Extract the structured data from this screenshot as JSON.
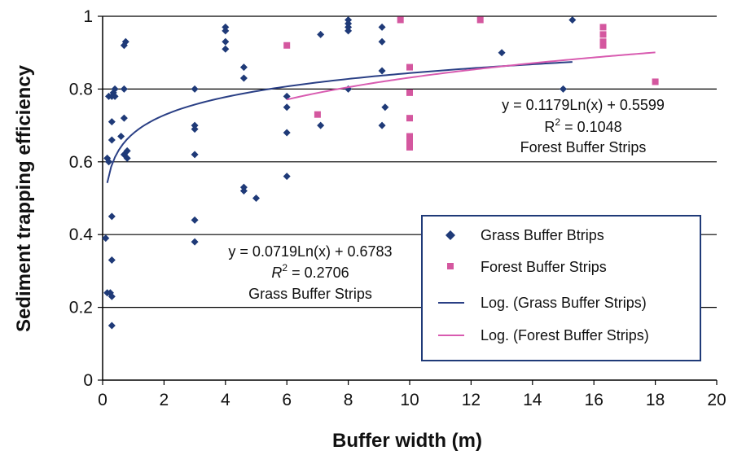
{
  "chart_data": {
    "type": "scatter",
    "xlabel": "Buffer width (m)",
    "ylabel": "Sediment trapping efficiency",
    "xlim": [
      0,
      20
    ],
    "ylim": [
      0,
      1
    ],
    "x_ticks": [
      "0",
      "2",
      "4",
      "6",
      "8",
      "10",
      "12",
      "14",
      "16",
      "18",
      "20"
    ],
    "y_ticks": [
      "0",
      "0.2",
      "0.4",
      "0.6",
      "0.8",
      "1"
    ],
    "grid": "horizontal",
    "legend_position": "lower-right",
    "series": [
      {
        "name": "Grass Buffer Btrips",
        "marker": "diamond",
        "color": "#1f3a78",
        "points": [
          [
            0.1,
            0.39
          ],
          [
            0.15,
            0.24
          ],
          [
            0.15,
            0.61
          ],
          [
            0.2,
            0.6
          ],
          [
            0.2,
            0.78
          ],
          [
            0.25,
            0.24
          ],
          [
            0.3,
            0.23
          ],
          [
            0.3,
            0.45
          ],
          [
            0.3,
            0.33
          ],
          [
            0.3,
            0.15
          ],
          [
            0.3,
            0.66
          ],
          [
            0.3,
            0.71
          ],
          [
            0.3,
            0.78
          ],
          [
            0.35,
            0.79
          ],
          [
            0.4,
            0.8
          ],
          [
            0.4,
            0.78
          ],
          [
            0.6,
            0.67
          ],
          [
            0.7,
            0.72
          ],
          [
            0.7,
            0.62
          ],
          [
            0.7,
            0.8
          ],
          [
            0.7,
            0.92
          ],
          [
            0.75,
            0.93
          ],
          [
            0.8,
            0.63
          ],
          [
            0.8,
            0.61
          ],
          [
            3.0,
            0.8
          ],
          [
            3.0,
            0.7
          ],
          [
            3.0,
            0.69
          ],
          [
            3.0,
            0.62
          ],
          [
            3.0,
            0.44
          ],
          [
            3.0,
            0.38
          ],
          [
            4.0,
            0.97
          ],
          [
            4.0,
            0.96
          ],
          [
            4.0,
            0.93
          ],
          [
            4.0,
            0.91
          ],
          [
            4.6,
            0.86
          ],
          [
            4.6,
            0.83
          ],
          [
            4.6,
            0.53
          ],
          [
            4.6,
            0.52
          ],
          [
            5.0,
            0.5
          ],
          [
            6.0,
            0.78
          ],
          [
            6.0,
            0.75
          ],
          [
            6.0,
            0.68
          ],
          [
            6.0,
            0.56
          ],
          [
            7.1,
            0.95
          ],
          [
            7.1,
            0.7
          ],
          [
            8.0,
            0.99
          ],
          [
            8.0,
            0.98
          ],
          [
            8.0,
            0.97
          ],
          [
            8.0,
            0.96
          ],
          [
            8.0,
            0.8
          ],
          [
            9.1,
            0.97
          ],
          [
            9.1,
            0.93
          ],
          [
            9.1,
            0.85
          ],
          [
            9.2,
            0.75
          ],
          [
            9.1,
            0.7
          ],
          [
            13.0,
            0.9
          ],
          [
            15.0,
            0.8
          ],
          [
            15.3,
            0.99
          ]
        ]
      },
      {
        "name": "Forest Buffer Strips",
        "marker": "square",
        "color": "#d4579f",
        "points": [
          [
            6.0,
            0.92
          ],
          [
            7.0,
            0.73
          ],
          [
            9.7,
            0.99
          ],
          [
            10.0,
            0.86
          ],
          [
            10.0,
            0.79
          ],
          [
            10.0,
            0.72
          ],
          [
            10.0,
            0.67
          ],
          [
            10.0,
            0.66
          ],
          [
            10.0,
            0.65
          ],
          [
            10.0,
            0.64
          ],
          [
            12.3,
            0.99
          ],
          [
            16.3,
            0.97
          ],
          [
            16.3,
            0.95
          ],
          [
            16.3,
            0.93
          ],
          [
            16.3,
            0.92
          ],
          [
            18.0,
            0.82
          ]
        ]
      }
    ],
    "trendlines": [
      {
        "name": "Log. (Grass Buffer Strips)",
        "color": "#2a3f85",
        "a": 0.0719,
        "b": 0.6783,
        "x_range": [
          0.15,
          15.3
        ],
        "equation": "y = 0.0719Ln(x) + 0.6783",
        "r2_value": "= 0.2706",
        "caption": "Grass Buffer Strips"
      },
      {
        "name": "Log. (Forest Buffer Strips)",
        "color": "#d85bb0",
        "a": 0.1179,
        "b": 0.5599,
        "x_range": [
          6,
          18
        ],
        "equation": "y = 0.1179Ln(x) + 0.5599",
        "r2_value": "= 0.1048",
        "caption": "Forest Buffer Strips"
      }
    ],
    "legend": [
      "Grass Buffer Btrips",
      "Forest Buffer Strips",
      "Log. (Grass Buffer Strips)",
      "Log. (Forest Buffer Strips)"
    ]
  }
}
